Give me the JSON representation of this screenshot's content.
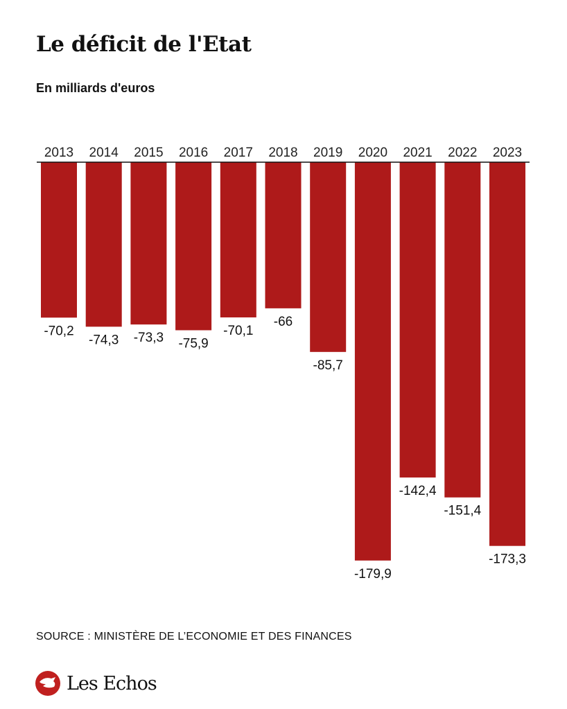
{
  "chart_data": {
    "type": "bar",
    "title": "Le déficit de l'Etat",
    "subtitle": "En milliards d'euros",
    "categories": [
      "2013",
      "2014",
      "2015",
      "2016",
      "2017",
      "2018",
      "2019",
      "2020",
      "2021",
      "2022",
      "2023"
    ],
    "values": [
      -70.2,
      -74.3,
      -73.3,
      -75.9,
      -70.1,
      -66,
      -85.7,
      -179.9,
      -142.4,
      -151.4,
      -173.3
    ],
    "value_labels": [
      "-70,2",
      "-74,3",
      "-73,3",
      "-75,9",
      "-70,1",
      "-66",
      "-85,7",
      "-179,9",
      "-142,4",
      "-151,4",
      "-173,3"
    ],
    "xlabel": "",
    "ylabel": "",
    "ylim": [
      -180,
      0
    ],
    "grid": false,
    "bar_color": "#ae1a1a",
    "source": "SOURCE : MINISTÈRE DE L’ECONOMIE ET DES FINANCES"
  },
  "brand": {
    "name": "Les Echos",
    "color": "#c0201f"
  }
}
